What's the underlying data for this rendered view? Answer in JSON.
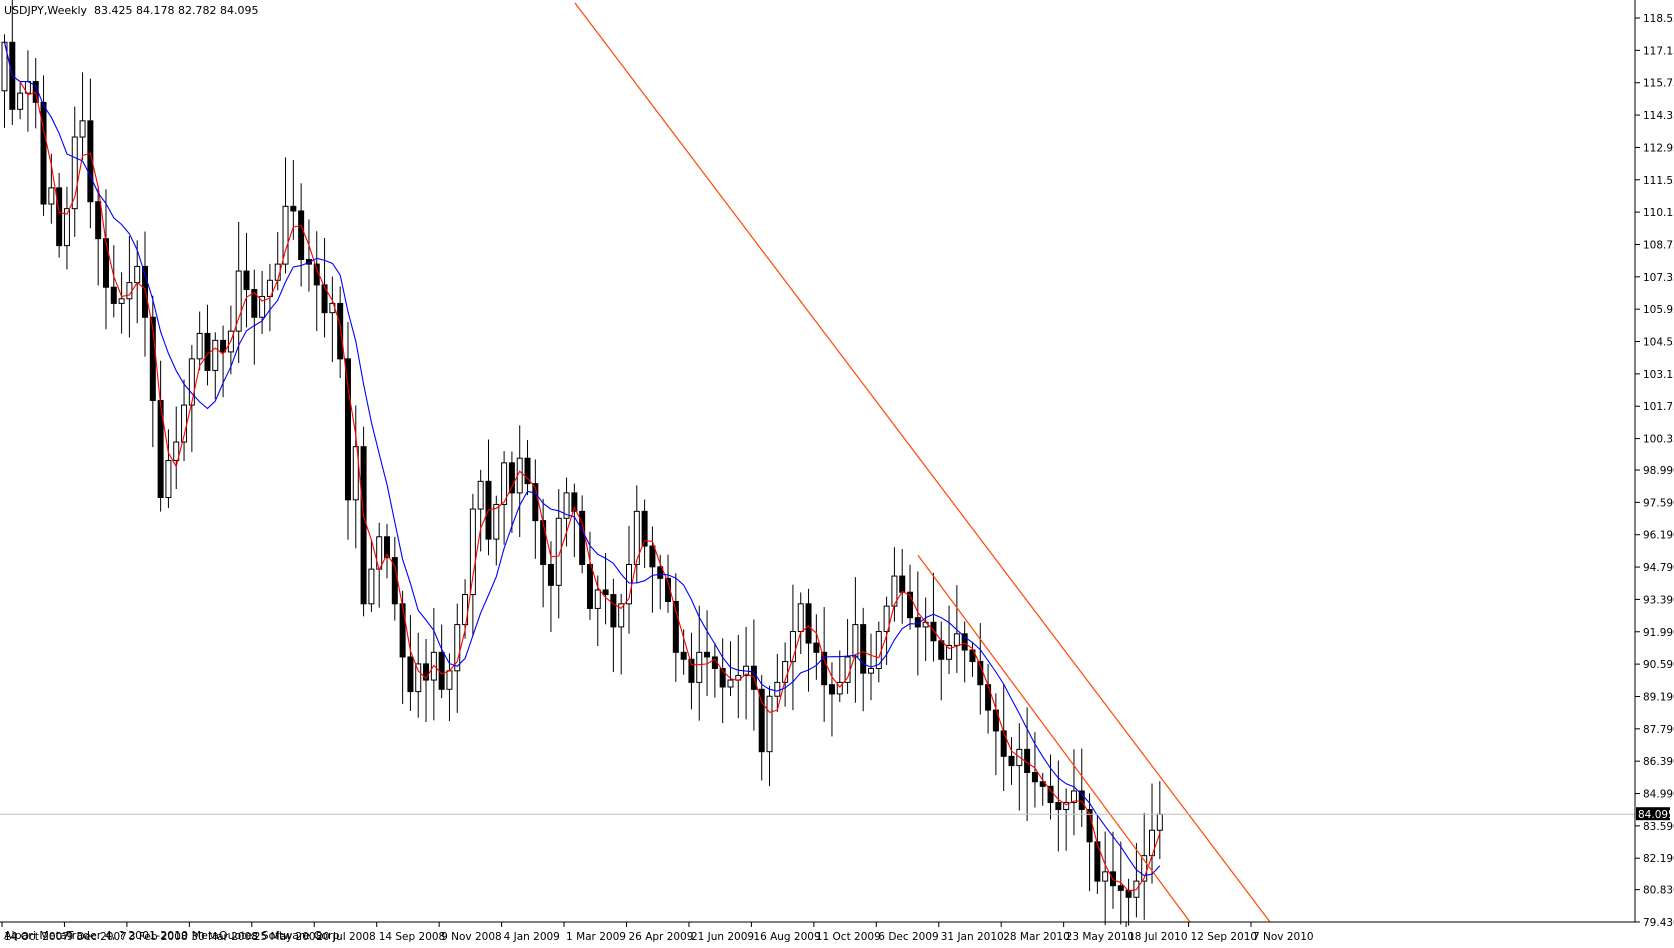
{
  "header": {
    "symbol": "USDJPY,Weekly",
    "ohlc": "83.425 84.178 82.782 84.095"
  },
  "footer": {
    "copyright": "Alpari MetaTrader 4, ? 2001-2010 MetaQuotes Software Corp."
  },
  "current_price_label": "84.095",
  "chart_data": {
    "type": "candlestick",
    "title": "USDJPY,Weekly",
    "ylim": [
      79.43,
      119.2
    ],
    "y_ticks": [
      "118.550",
      "117.150",
      "115.750",
      "114.350",
      "112.950",
      "111.550",
      "110.150",
      "108.750",
      "107.350",
      "105.950",
      "104.550",
      "103.150",
      "101.750",
      "100.350",
      "98.990",
      "97.590",
      "96.190",
      "94.790",
      "93.390",
      "91.990",
      "90.590",
      "89.190",
      "87.790",
      "86.390",
      "84.990",
      "83.590",
      "82.190",
      "80.830",
      "79.430"
    ],
    "x_ticks": [
      "14 Oct 2007",
      "9 Dec 2007",
      "3 Feb 2008",
      "30 Mar 2008",
      "25 May 2008",
      "20 Jul 2008",
      "14 Sep 2008",
      "9 Nov 2008",
      "4 Jan 2009",
      "1 Mar 2009",
      "26 Apr 2009",
      "21 Jun 2009",
      "16 Aug 2009",
      "11 Oct 2009",
      "6 Dec 2009",
      "31 Jan 2010",
      "28 Mar 2010",
      "23 May 2010",
      "18 Jul 2010",
      "12 Sep 2010",
      "7 Nov 2010"
    ],
    "current_price": 84.095,
    "closes": [
      117.5,
      114.6,
      115.3,
      115.8,
      114.9,
      110.5,
      111.2,
      108.7,
      110.3,
      113.4,
      114.1,
      110.6,
      109.0,
      106.9,
      106.2,
      106.4,
      107.1,
      107.8,
      105.6,
      102.0,
      97.8,
      99.4,
      100.2,
      101.8,
      103.8,
      104.9,
      103.3,
      104.6,
      104.1,
      105.0,
      107.6,
      106.8,
      105.6,
      106.5,
      107.2,
      107.9,
      110.4,
      110.2,
      108.1,
      107.9,
      107.0,
      105.8,
      106.2,
      103.8,
      97.7,
      100.0,
      93.2,
      94.7,
      96.1,
      95.2,
      93.2,
      90.9,
      89.4,
      90.6,
      89.9,
      91.1,
      89.5,
      90.3,
      92.3,
      93.6,
      97.3,
      98.5,
      96.0,
      97.5,
      99.3,
      98.0,
      99.5,
      98.4,
      96.8,
      94.9,
      94.0,
      96.9,
      98.0,
      97.2,
      94.9,
      93.0,
      93.8,
      93.6,
      92.2,
      93.2,
      94.9,
      97.2,
      95.7,
      94.8,
      94.3,
      93.3,
      91.1,
      90.8,
      89.8,
      91.1,
      90.9,
      90.4,
      89.6,
      89.9,
      90.1,
      90.5,
      89.5,
      86.8,
      89.2,
      89.8,
      90.7,
      92.0,
      93.2,
      91.5,
      91.1,
      89.7,
      89.3,
      89.8,
      90.9,
      92.3,
      90.2,
      90.4,
      92.0,
      93.1,
      94.4,
      93.7,
      92.6,
      92.2,
      92.4,
      91.6,
      90.8,
      91.4,
      91.9,
      91.2,
      90.7,
      89.7,
      88.6,
      87.7,
      86.6,
      86.2,
      86.9,
      85.9,
      85.5,
      85.3,
      84.6,
      84.3,
      84.6,
      85.1,
      84.3,
      82.9,
      81.2,
      81.6,
      81.0,
      80.8,
      80.5,
      81.2,
      82.3,
      83.4,
      84.095
    ],
    "series": [
      {
        "name": "",
        "color": "#ff0000",
        "kind": "moving-average"
      },
      {
        "name": "",
        "color": "#0000ff",
        "kind": "moving-average"
      }
    ],
    "trend_lines": [
      {
        "color": "#ff4500",
        "from": {
          "x": "14 Oct 2007 +96 wk",
          "y": 119.2
        },
        "to": {
          "x": "7 Nov 2010 +6 wk",
          "y": 79.43
        }
      },
      {
        "color": "#ff4500",
        "from": {
          "x": "31 Jan 2010 +1 wk",
          "y": 95.3
        },
        "to": {
          "x": "7 Nov 2010 -1 wk",
          "y": 79.43
        }
      }
    ],
    "grid": false,
    "legend": "none"
  }
}
